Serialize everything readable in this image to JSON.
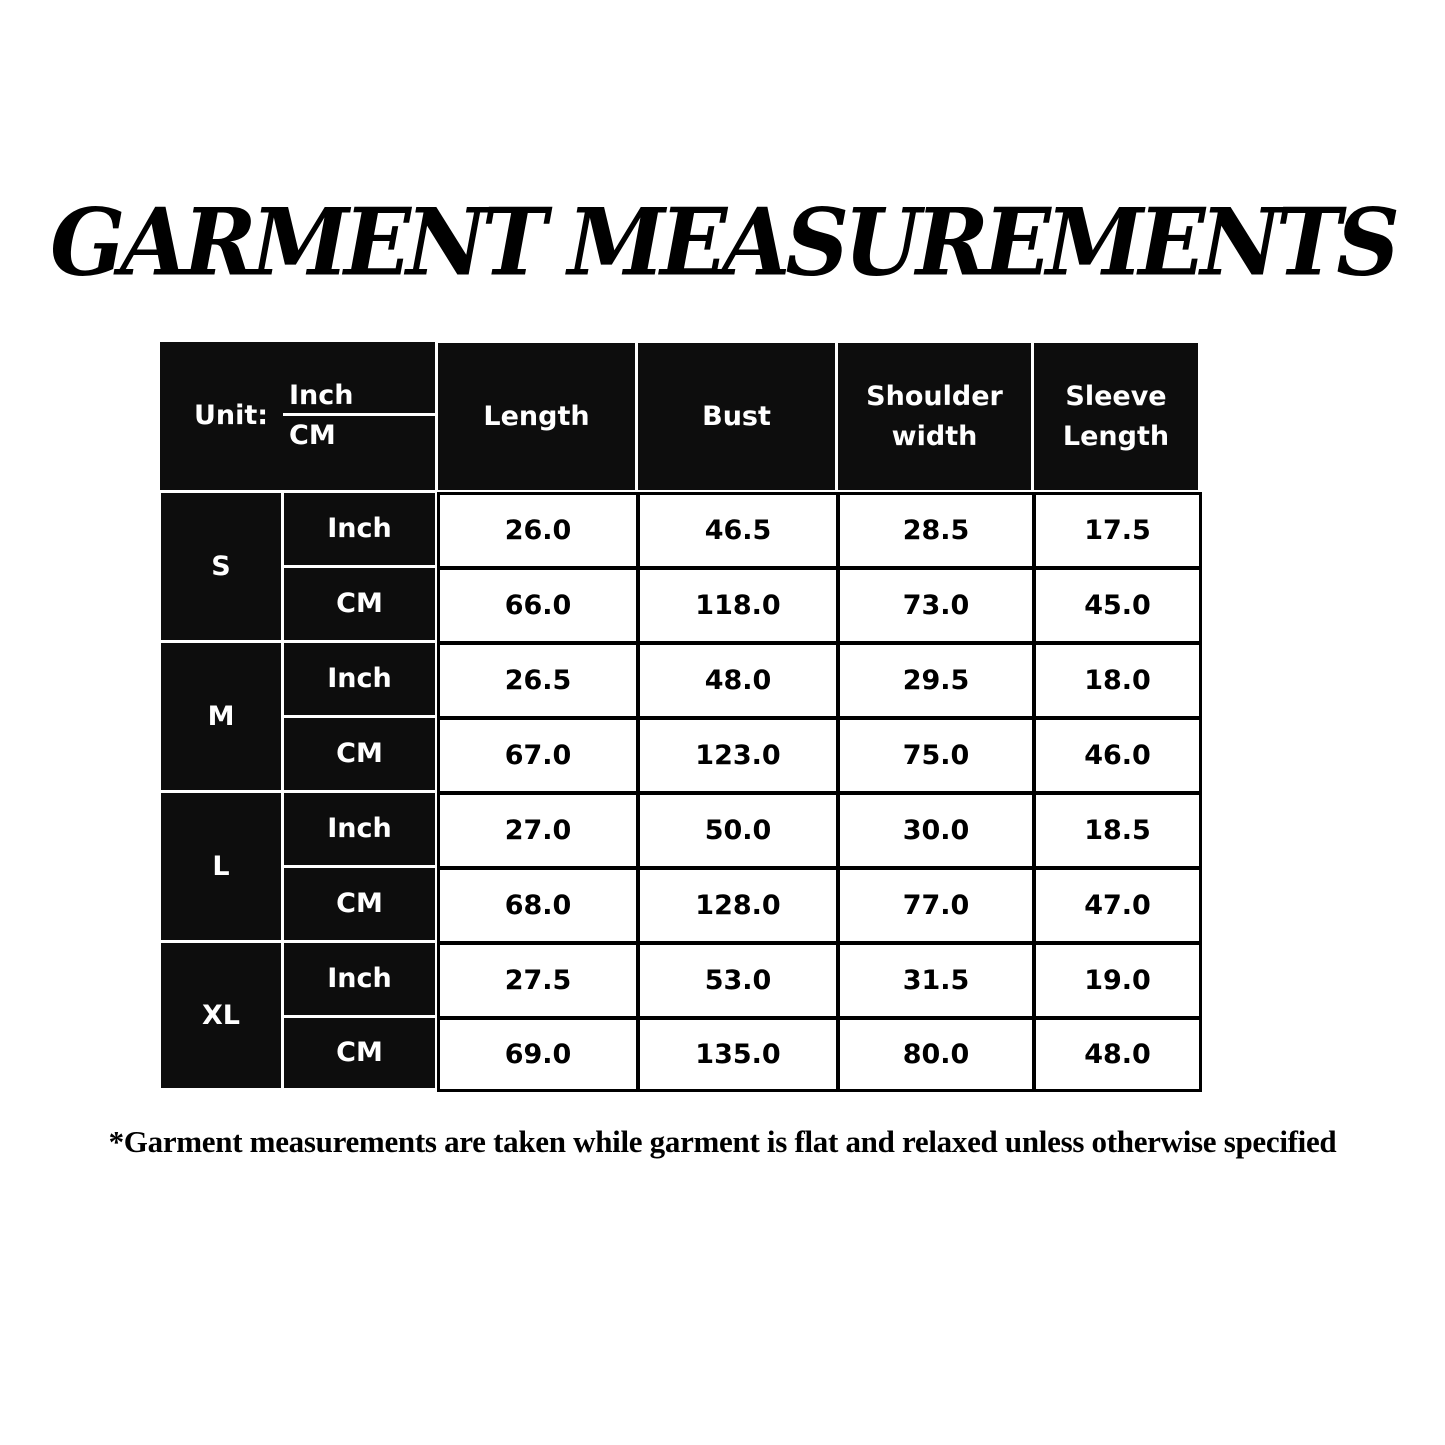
{
  "title": "GARMENT MEASUREMENTS",
  "table": {
    "unit_label": "Unit:",
    "unit_top": "Inch",
    "unit_bottom": "CM",
    "columns": [
      "Length",
      "Bust",
      "Shoulder width",
      "Sleeve Length"
    ],
    "sizes": [
      {
        "size": "S",
        "rows": [
          {
            "unit": "Inch",
            "values": [
              "26.0",
              "46.5",
              "28.5",
              "17.5"
            ]
          },
          {
            "unit": "CM",
            "values": [
              "66.0",
              "118.0",
              "73.0",
              "45.0"
            ]
          }
        ]
      },
      {
        "size": "M",
        "rows": [
          {
            "unit": "Inch",
            "values": [
              "26.5",
              "48.0",
              "29.5",
              "18.0"
            ]
          },
          {
            "unit": "CM",
            "values": [
              "67.0",
              "123.0",
              "75.0",
              "46.0"
            ]
          }
        ]
      },
      {
        "size": "L",
        "rows": [
          {
            "unit": "Inch",
            "values": [
              "27.0",
              "50.0",
              "30.0",
              "18.5"
            ]
          },
          {
            "unit": "CM",
            "values": [
              "68.0",
              "128.0",
              "77.0",
              "47.0"
            ]
          }
        ]
      },
      {
        "size": "XL",
        "rows": [
          {
            "unit": "Inch",
            "values": [
              "27.5",
              "53.0",
              "31.5",
              "19.0"
            ]
          },
          {
            "unit": "CM",
            "values": [
              "69.0",
              "135.0",
              "80.0",
              "48.0"
            ]
          }
        ]
      }
    ]
  },
  "footnote": "*Garment measurements are taken while garment is flat and relaxed unless otherwise specified"
}
